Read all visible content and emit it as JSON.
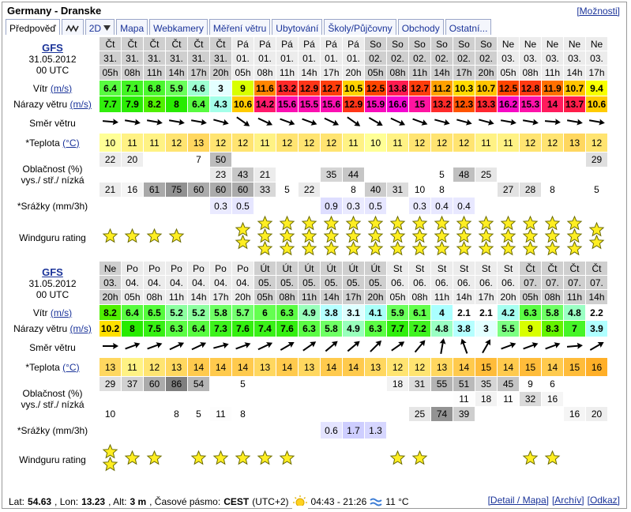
{
  "header": {
    "title": "Germany - Dranske",
    "options": "[Možnosti]"
  },
  "tabs": [
    "Předpověď",
    "2D",
    "Mapa",
    "Webkamery",
    "Měření větru",
    "Ubytování",
    "Školy/Půjčovny",
    "Obchody",
    "Ostatní..."
  ],
  "row_labels": {
    "wind": "Vítr",
    "wind_unit": "(m/s)",
    "gusts": "Nárazy větru",
    "gusts_unit": "(m/s)",
    "direction": "Směr větru",
    "temp": "*Teplota",
    "temp_unit": "(°C)",
    "cloud": "Oblačnost (%)",
    "cloud_levels": "vys./ stř./ nízká",
    "rain": "*Srážky (mm/3h)",
    "rating": "Windguru rating"
  },
  "blocks": [
    {
      "model": "GFS",
      "date": "31.05.2012",
      "run": "00 UTC",
      "days": [
        "Čt",
        "Čt",
        "Čt",
        "Čt",
        "Čt",
        "Čt",
        "Pá",
        "Pá",
        "Pá",
        "Pá",
        "Pá",
        "Pá",
        "So",
        "So",
        "So",
        "So",
        "So",
        "So",
        "Ne",
        "Ne",
        "Ne",
        "Ne",
        "Ne"
      ],
      "dates": [
        "31.",
        "31.",
        "31.",
        "31.",
        "31.",
        "31.",
        "01.",
        "01.",
        "01.",
        "01.",
        "01.",
        "01.",
        "02.",
        "02.",
        "02.",
        "02.",
        "02.",
        "02.",
        "03.",
        "03.",
        "03.",
        "03.",
        "03."
      ],
      "hours": [
        "05h",
        "08h",
        "11h",
        "14h",
        "17h",
        "20h",
        "05h",
        "08h",
        "11h",
        "14h",
        "17h",
        "20h",
        "05h",
        "08h",
        "11h",
        "14h",
        "17h",
        "20h",
        "05h",
        "08h",
        "11h",
        "14h",
        "17h"
      ],
      "wind": [
        6.4,
        7.1,
        6.8,
        5.9,
        4.6,
        3,
        9,
        11.6,
        13.2,
        12.9,
        12.7,
        10.5,
        12.5,
        13.8,
        12.7,
        11.2,
        10.3,
        10.7,
        12.5,
        12.8,
        11.9,
        10.7,
        9.4
      ],
      "gusts": [
        7.7,
        7.9,
        8.2,
        8,
        6.4,
        4.3,
        10.6,
        14.2,
        15.6,
        15.5,
        15.6,
        12.9,
        15.9,
        16.6,
        15,
        13.2,
        12.3,
        13.3,
        16.2,
        15.3,
        14,
        13.7,
        10.6
      ],
      "direction": [
        5,
        10,
        10,
        10,
        10,
        15,
        35,
        25,
        20,
        20,
        25,
        35,
        30,
        25,
        20,
        15,
        15,
        15,
        10,
        10,
        5,
        10,
        10
      ],
      "temp": [
        10,
        11,
        11,
        12,
        13,
        12,
        12,
        11,
        12,
        12,
        12,
        11,
        10,
        11,
        12,
        12,
        12,
        11,
        11,
        12,
        12,
        13,
        12
      ],
      "cloud_high": [
        22,
        20,
        null,
        null,
        7,
        50,
        null,
        null,
        null,
        null,
        null,
        null,
        null,
        null,
        null,
        null,
        null,
        null,
        null,
        null,
        null,
        null,
        29
      ],
      "cloud_mid": [
        null,
        null,
        null,
        null,
        null,
        23,
        43,
        21,
        null,
        null,
        35,
        44,
        null,
        null,
        null,
        5,
        48,
        25,
        null,
        null,
        null,
        null,
        null
      ],
      "cloud_low": [
        21,
        16,
        61,
        75,
        60,
        60,
        60,
        33,
        5,
        22,
        null,
        8,
        40,
        31,
        10,
        8,
        null,
        null,
        27,
        28,
        8,
        null,
        5
      ],
      "rain": [
        null,
        null,
        null,
        null,
        null,
        0.3,
        0.5,
        null,
        null,
        null,
        0.9,
        0.3,
        0.5,
        null,
        0.3,
        0.4,
        0.4,
        null,
        null,
        null,
        null,
        null,
        null
      ],
      "rating": [
        1,
        1,
        1,
        1,
        0,
        0,
        2,
        3,
        3,
        3,
        3,
        3,
        3,
        3,
        3,
        3,
        3,
        3,
        3,
        3,
        3,
        3,
        2
      ]
    },
    {
      "model": "GFS",
      "date": "31.05.2012",
      "run": "00 UTC",
      "days": [
        "Ne",
        "Po",
        "Po",
        "Po",
        "Po",
        "Po",
        "Po",
        "Út",
        "Út",
        "Út",
        "Út",
        "Út",
        "Út",
        "St",
        "St",
        "St",
        "St",
        "St",
        "St",
        "Čt",
        "Čt",
        "Čt",
        "Čt"
      ],
      "dates": [
        "03.",
        "04.",
        "04.",
        "04.",
        "04.",
        "04.",
        "04.",
        "05.",
        "05.",
        "05.",
        "05.",
        "05.",
        "05.",
        "06.",
        "06.",
        "06.",
        "06.",
        "06.",
        "06.",
        "07.",
        "07.",
        "07.",
        "07."
      ],
      "hours": [
        "20h",
        "05h",
        "08h",
        "11h",
        "14h",
        "17h",
        "20h",
        "05h",
        "08h",
        "11h",
        "14h",
        "17h",
        "20h",
        "05h",
        "08h",
        "11h",
        "14h",
        "17h",
        "20h",
        "05h",
        "08h",
        "11h",
        "14h"
      ],
      "wind": [
        8.2,
        6.4,
        6.5,
        5.2,
        5.2,
        5.8,
        5.7,
        6,
        6.3,
        4.9,
        3.8,
        3.1,
        4.1,
        5.9,
        6.1,
        4,
        2.1,
        2.1,
        4.2,
        6.3,
        5.8,
        4.8,
        2.2
      ],
      "gusts": [
        10.2,
        8,
        7.5,
        6.3,
        6.4,
        7.3,
        7.6,
        7.4,
        7.6,
        6.3,
        5.8,
        4.9,
        6.3,
        7.7,
        7.2,
        4.8,
        3.8,
        3,
        5.5,
        9,
        8.3,
        7,
        3.9
      ],
      "direction": [
        0,
        -20,
        -20,
        -25,
        -25,
        -15,
        -20,
        -25,
        -30,
        -35,
        -40,
        -40,
        -45,
        -35,
        -50,
        -80,
        -110,
        -60,
        -20,
        -20,
        -20,
        -5,
        -30
      ],
      "temp": [
        13,
        11,
        12,
        13,
        14,
        14,
        14,
        13,
        14,
        13,
        14,
        14,
        13,
        12,
        12,
        13,
        14,
        15,
        14,
        15,
        14,
        15,
        16
      ],
      "cloud_high": [
        29,
        37,
        60,
        86,
        54,
        null,
        5,
        null,
        null,
        null,
        null,
        null,
        null,
        18,
        31,
        55,
        51,
        35,
        45,
        9,
        6,
        null,
        null
      ],
      "cloud_mid": [
        null,
        null,
        null,
        null,
        null,
        null,
        null,
        null,
        null,
        null,
        null,
        null,
        null,
        null,
        null,
        null,
        11,
        18,
        11,
        32,
        16,
        null,
        null
      ],
      "cloud_low": [
        10,
        null,
        null,
        8,
        5,
        11,
        8,
        null,
        null,
        null,
        null,
        null,
        null,
        null,
        25,
        74,
        39,
        null,
        null,
        null,
        null,
        16,
        20
      ],
      "rain": [
        null,
        null,
        null,
        null,
        null,
        null,
        null,
        null,
        null,
        null,
        0.6,
        1.7,
        1.3,
        null,
        null,
        null,
        null,
        null,
        null,
        null,
        null,
        null,
        null
      ],
      "rating": [
        2,
        1,
        1,
        0,
        1,
        1,
        1,
        1,
        1,
        0,
        0,
        0,
        0,
        1,
        1,
        0,
        0,
        0,
        0,
        1,
        1,
        0,
        0
      ]
    }
  ],
  "footer": {
    "lat_label": "Lat:",
    "lat": "54.63",
    "lon_label": ", Lon:",
    "lon": "13.23",
    "alt_label": ", Alt:",
    "alt": "3 m",
    "tz_label": ", Časové pásmo:",
    "tz": "CEST",
    "tz_offset": "(UTC+2)",
    "sun": "04:43 - 21:26",
    "water": "11 °C",
    "links": [
      "[Detail / Mapa]",
      "[Archív]",
      "[Odkaz]"
    ]
  }
}
